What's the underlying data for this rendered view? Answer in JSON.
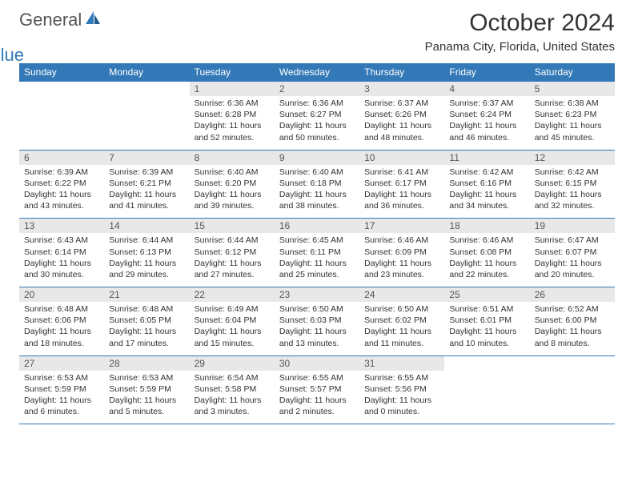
{
  "logo": {
    "text1": "General",
    "text2": "Blue"
  },
  "title": "October 2024",
  "location": "Panama City, Florida, United States",
  "colors": {
    "header_bg": "#3379b7",
    "header_text": "#ffffff",
    "daynum_bg": "#e8e8e8",
    "border": "#3379b7"
  },
  "fonts": {
    "title_size": 30,
    "location_size": 15,
    "header_size": 12,
    "cell_size": 10.5
  },
  "weekdays": [
    "Sunday",
    "Monday",
    "Tuesday",
    "Wednesday",
    "Thursday",
    "Friday",
    "Saturday"
  ],
  "weeks": [
    [
      null,
      null,
      {
        "d": "1",
        "sr": "Sunrise: 6:36 AM",
        "ss": "Sunset: 6:28 PM",
        "dl": "Daylight: 11 hours and 52 minutes."
      },
      {
        "d": "2",
        "sr": "Sunrise: 6:36 AM",
        "ss": "Sunset: 6:27 PM",
        "dl": "Daylight: 11 hours and 50 minutes."
      },
      {
        "d": "3",
        "sr": "Sunrise: 6:37 AM",
        "ss": "Sunset: 6:26 PM",
        "dl": "Daylight: 11 hours and 48 minutes."
      },
      {
        "d": "4",
        "sr": "Sunrise: 6:37 AM",
        "ss": "Sunset: 6:24 PM",
        "dl": "Daylight: 11 hours and 46 minutes."
      },
      {
        "d": "5",
        "sr": "Sunrise: 6:38 AM",
        "ss": "Sunset: 6:23 PM",
        "dl": "Daylight: 11 hours and 45 minutes."
      }
    ],
    [
      {
        "d": "6",
        "sr": "Sunrise: 6:39 AM",
        "ss": "Sunset: 6:22 PM",
        "dl": "Daylight: 11 hours and 43 minutes."
      },
      {
        "d": "7",
        "sr": "Sunrise: 6:39 AM",
        "ss": "Sunset: 6:21 PM",
        "dl": "Daylight: 11 hours and 41 minutes."
      },
      {
        "d": "8",
        "sr": "Sunrise: 6:40 AM",
        "ss": "Sunset: 6:20 PM",
        "dl": "Daylight: 11 hours and 39 minutes."
      },
      {
        "d": "9",
        "sr": "Sunrise: 6:40 AM",
        "ss": "Sunset: 6:18 PM",
        "dl": "Daylight: 11 hours and 38 minutes."
      },
      {
        "d": "10",
        "sr": "Sunrise: 6:41 AM",
        "ss": "Sunset: 6:17 PM",
        "dl": "Daylight: 11 hours and 36 minutes."
      },
      {
        "d": "11",
        "sr": "Sunrise: 6:42 AM",
        "ss": "Sunset: 6:16 PM",
        "dl": "Daylight: 11 hours and 34 minutes."
      },
      {
        "d": "12",
        "sr": "Sunrise: 6:42 AM",
        "ss": "Sunset: 6:15 PM",
        "dl": "Daylight: 11 hours and 32 minutes."
      }
    ],
    [
      {
        "d": "13",
        "sr": "Sunrise: 6:43 AM",
        "ss": "Sunset: 6:14 PM",
        "dl": "Daylight: 11 hours and 30 minutes."
      },
      {
        "d": "14",
        "sr": "Sunrise: 6:44 AM",
        "ss": "Sunset: 6:13 PM",
        "dl": "Daylight: 11 hours and 29 minutes."
      },
      {
        "d": "15",
        "sr": "Sunrise: 6:44 AM",
        "ss": "Sunset: 6:12 PM",
        "dl": "Daylight: 11 hours and 27 minutes."
      },
      {
        "d": "16",
        "sr": "Sunrise: 6:45 AM",
        "ss": "Sunset: 6:11 PM",
        "dl": "Daylight: 11 hours and 25 minutes."
      },
      {
        "d": "17",
        "sr": "Sunrise: 6:46 AM",
        "ss": "Sunset: 6:09 PM",
        "dl": "Daylight: 11 hours and 23 minutes."
      },
      {
        "d": "18",
        "sr": "Sunrise: 6:46 AM",
        "ss": "Sunset: 6:08 PM",
        "dl": "Daylight: 11 hours and 22 minutes."
      },
      {
        "d": "19",
        "sr": "Sunrise: 6:47 AM",
        "ss": "Sunset: 6:07 PM",
        "dl": "Daylight: 11 hours and 20 minutes."
      }
    ],
    [
      {
        "d": "20",
        "sr": "Sunrise: 6:48 AM",
        "ss": "Sunset: 6:06 PM",
        "dl": "Daylight: 11 hours and 18 minutes."
      },
      {
        "d": "21",
        "sr": "Sunrise: 6:48 AM",
        "ss": "Sunset: 6:05 PM",
        "dl": "Daylight: 11 hours and 17 minutes."
      },
      {
        "d": "22",
        "sr": "Sunrise: 6:49 AM",
        "ss": "Sunset: 6:04 PM",
        "dl": "Daylight: 11 hours and 15 minutes."
      },
      {
        "d": "23",
        "sr": "Sunrise: 6:50 AM",
        "ss": "Sunset: 6:03 PM",
        "dl": "Daylight: 11 hours and 13 minutes."
      },
      {
        "d": "24",
        "sr": "Sunrise: 6:50 AM",
        "ss": "Sunset: 6:02 PM",
        "dl": "Daylight: 11 hours and 11 minutes."
      },
      {
        "d": "25",
        "sr": "Sunrise: 6:51 AM",
        "ss": "Sunset: 6:01 PM",
        "dl": "Daylight: 11 hours and 10 minutes."
      },
      {
        "d": "26",
        "sr": "Sunrise: 6:52 AM",
        "ss": "Sunset: 6:00 PM",
        "dl": "Daylight: 11 hours and 8 minutes."
      }
    ],
    [
      {
        "d": "27",
        "sr": "Sunrise: 6:53 AM",
        "ss": "Sunset: 5:59 PM",
        "dl": "Daylight: 11 hours and 6 minutes."
      },
      {
        "d": "28",
        "sr": "Sunrise: 6:53 AM",
        "ss": "Sunset: 5:59 PM",
        "dl": "Daylight: 11 hours and 5 minutes."
      },
      {
        "d": "29",
        "sr": "Sunrise: 6:54 AM",
        "ss": "Sunset: 5:58 PM",
        "dl": "Daylight: 11 hours and 3 minutes."
      },
      {
        "d": "30",
        "sr": "Sunrise: 6:55 AM",
        "ss": "Sunset: 5:57 PM",
        "dl": "Daylight: 11 hours and 2 minutes."
      },
      {
        "d": "31",
        "sr": "Sunrise: 6:55 AM",
        "ss": "Sunset: 5:56 PM",
        "dl": "Daylight: 11 hours and 0 minutes."
      },
      null,
      null
    ]
  ]
}
